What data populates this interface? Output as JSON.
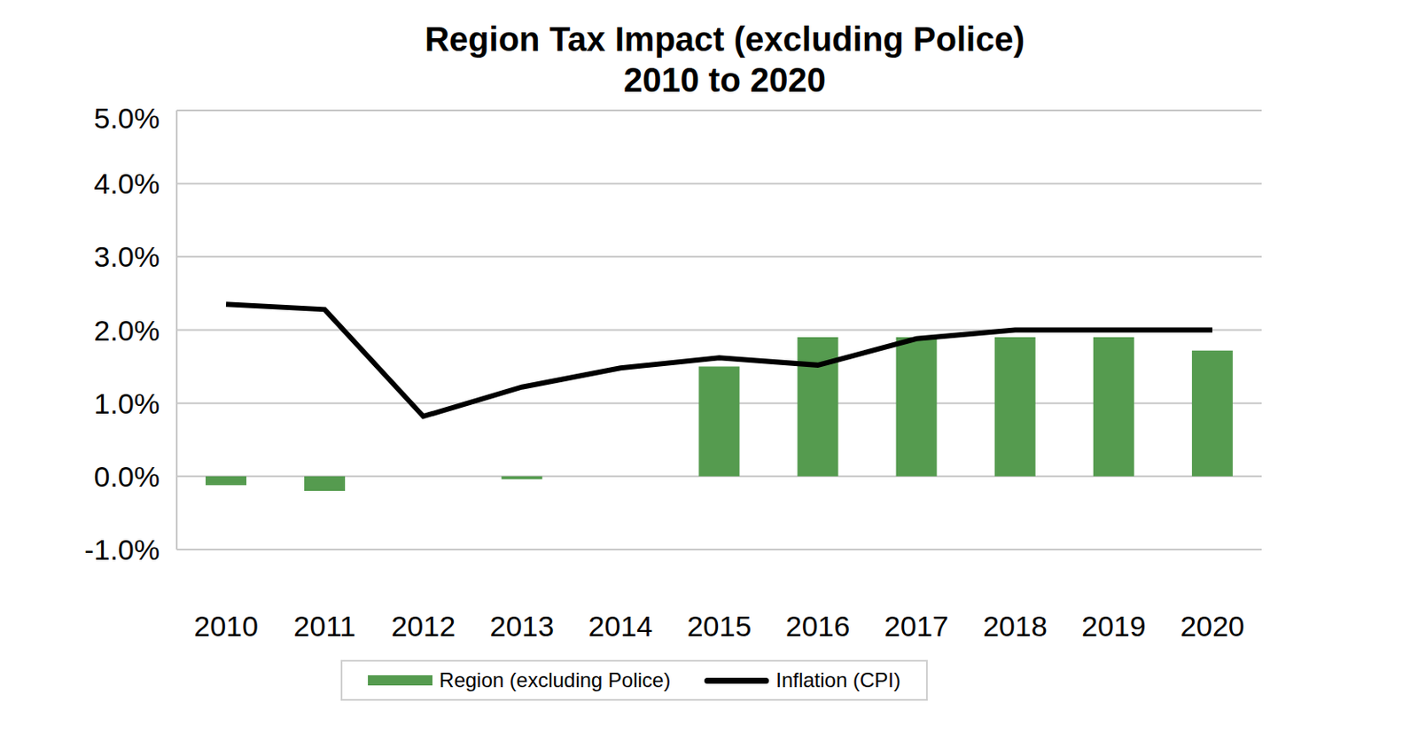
{
  "chart_data": {
    "type": "bar",
    "title": "Region Tax Impact (excluding Police)\n2010 to 2020",
    "categories": [
      "2010",
      "2011",
      "2012",
      "2013",
      "2014",
      "2015",
      "2016",
      "2017",
      "2018",
      "2019",
      "2020"
    ],
    "series": [
      {
        "name": "Region (excluding Police)",
        "type": "bar",
        "color": "#559b4f",
        "values": [
          -0.12,
          -0.2,
          0,
          -0.04,
          0,
          1.5,
          1.9,
          1.9,
          1.9,
          1.9,
          1.72
        ]
      },
      {
        "name": "Inflation (CPI)",
        "type": "line",
        "color": "#000000",
        "values": [
          2.35,
          2.28,
          0.82,
          1.22,
          1.48,
          1.62,
          1.52,
          1.88,
          2.0,
          2.0,
          2.0
        ]
      }
    ],
    "ylim": [
      -1,
      5
    ],
    "yticks": [
      {
        "value": -1,
        "label": "-1.0%"
      },
      {
        "value": 0,
        "label": "0.0%"
      },
      {
        "value": 1,
        "label": "1.0%"
      },
      {
        "value": 2,
        "label": "2.0%"
      },
      {
        "value": 3,
        "label": "3.0%"
      },
      {
        "value": 4,
        "label": "4.0%"
      },
      {
        "value": 5,
        "label": "5.0%"
      }
    ],
    "grid": true,
    "legend": "bottom"
  }
}
